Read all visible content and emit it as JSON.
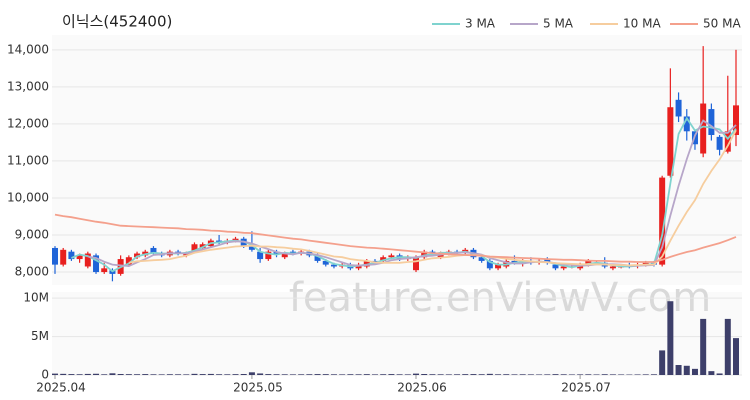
{
  "chart_data": {
    "type": "candlestick",
    "title": "이닉스(452400)",
    "watermark": "feature.enViewV.com",
    "categories": [
      "2025.04",
      null,
      null,
      null,
      null,
      null,
      null,
      null,
      null,
      null,
      null,
      null,
      null,
      null,
      null,
      null,
      null,
      null,
      null,
      null,
      null,
      null,
      null,
      null,
      "2025.05",
      null,
      null,
      null,
      null,
      null,
      null,
      null,
      null,
      null,
      null,
      null,
      null,
      null,
      null,
      null,
      null,
      null,
      null,
      null,
      "2025.06",
      null,
      null,
      null,
      null,
      null,
      null,
      null,
      null,
      null,
      null,
      null,
      null,
      null,
      null,
      null,
      null,
      null,
      null,
      null,
      "2025.07",
      null,
      null,
      null,
      null,
      null,
      null,
      null,
      null,
      null,
      null,
      null,
      null,
      null,
      null,
      null,
      null,
      null,
      null,
      null
    ],
    "open": [
      8650,
      8200,
      8550,
      8350,
      8150,
      8450,
      8000,
      8050,
      7950,
      8200,
      8400,
      8450,
      8650,
      8500,
      8450,
      8550,
      8450,
      8550,
      8650,
      8700,
      8850,
      8800,
      8850,
      8900,
      8700,
      8550,
      8350,
      8550,
      8400,
      8550,
      8500,
      8550,
      8450,
      8300,
      8200,
      8150,
      8200,
      8100,
      8150,
      8300,
      8300,
      8400,
      8450,
      8350,
      8050,
      8400,
      8550,
      8400,
      8500,
      8550,
      8550,
      8600,
      8400,
      8300,
      8100,
      8150,
      8300,
      8250,
      8300,
      8250,
      8350,
      8200,
      8100,
      8150,
      8100,
      8200,
      8250,
      8250,
      8100,
      8150,
      8200,
      8150,
      8200,
      8250,
      8200,
      10600,
      12650,
      12200,
      11800,
      11200,
      12400,
      11650,
      11250,
      11700
    ],
    "high": [
      8700,
      8650,
      8600,
      8500,
      8550,
      8500,
      8250,
      8100,
      8450,
      8450,
      8550,
      8600,
      8700,
      8550,
      8600,
      8600,
      8550,
      8800,
      8800,
      8900,
      9000,
      8900,
      8950,
      8950,
      9100,
      8650,
      8600,
      8600,
      8550,
      8600,
      8600,
      8600,
      8500,
      8350,
      8250,
      8250,
      8250,
      8250,
      8350,
      8350,
      8450,
      8500,
      8500,
      8450,
      8450,
      8600,
      8600,
      8550,
      8600,
      8600,
      8650,
      8650,
      8450,
      8350,
      8250,
      8350,
      8450,
      8350,
      8400,
      8350,
      8400,
      8250,
      8200,
      8200,
      8250,
      8350,
      8300,
      8400,
      8200,
      8200,
      8250,
      8250,
      8300,
      8300,
      10600,
      13500,
      12850,
      12400,
      11850,
      14100,
      12550,
      11700,
      13300,
      14000
    ],
    "low": [
      7950,
      8150,
      8300,
      8250,
      8100,
      7950,
      7950,
      7750,
      7900,
      8150,
      8350,
      8400,
      8450,
      8400,
      8400,
      8450,
      8400,
      8500,
      8600,
      8650,
      8750,
      8750,
      8800,
      8650,
      8550,
      8250,
      8300,
      8400,
      8350,
      8450,
      8450,
      8400,
      8250,
      8150,
      8100,
      8100,
      8050,
      8050,
      8100,
      8200,
      8250,
      8350,
      8300,
      8300,
      8000,
      8350,
      8450,
      8350,
      8450,
      8450,
      8450,
      8350,
      8250,
      8050,
      8050,
      8100,
      8200,
      8150,
      8200,
      8200,
      8200,
      8050,
      8050,
      8100,
      8050,
      8150,
      8200,
      8100,
      8050,
      8100,
      8100,
      8100,
      8150,
      8150,
      8150,
      10550,
      12050,
      11550,
      11300,
      11100,
      11550,
      11150,
      11200,
      11400
    ],
    "close": [
      8200,
      8600,
      8350,
      8450,
      8500,
      8000,
      8100,
      7950,
      8350,
      8400,
      8500,
      8550,
      8500,
      8450,
      8550,
      8500,
      8500,
      8750,
      8750,
      8850,
      8800,
      8850,
      8900,
      8700,
      8600,
      8350,
      8550,
      8500,
      8500,
      8500,
      8550,
      8450,
      8300,
      8200,
      8150,
      8200,
      8100,
      8200,
      8300,
      8250,
      8400,
      8450,
      8350,
      8400,
      8400,
      8550,
      8500,
      8500,
      8550,
      8500,
      8600,
      8400,
      8300,
      8100,
      8200,
      8300,
      8250,
      8300,
      8250,
      8300,
      8250,
      8100,
      8150,
      8150,
      8200,
      8300,
      8250,
      8150,
      8150,
      8150,
      8150,
      8200,
      8250,
      8200,
      10550,
      12450,
      12200,
      11800,
      11450,
      12550,
      11700,
      11300,
      11800,
      12500
    ],
    "volume": [
      180000,
      150000,
      120000,
      100000,
      140000,
      160000,
      90000,
      220000,
      130000,
      110000,
      100000,
      120000,
      90000,
      80000,
      100000,
      90000,
      80000,
      150000,
      120000,
      140000,
      100000,
      90000,
      110000,
      130000,
      350000,
      200000,
      120000,
      100000,
      90000,
      80000,
      90000,
      100000,
      120000,
      110000,
      90000,
      80000,
      100000,
      90000,
      110000,
      80000,
      100000,
      120000,
      90000,
      80000,
      180000,
      130000,
      100000,
      90000,
      80000,
      90000,
      110000,
      120000,
      100000,
      150000,
      90000,
      100000,
      80000,
      90000,
      80000,
      70000,
      80000,
      110000,
      90000,
      70000,
      80000,
      90000,
      70000,
      100000,
      80000,
      70000,
      60000,
      70000,
      80000,
      90000,
      3200000,
      9600000,
      1300000,
      1200000,
      800000,
      7300000,
      500000,
      200000,
      7300000,
      4800000
    ],
    "series": [
      {
        "name": "3 MA",
        "color": "#7fd3cf",
        "values": [
          null,
          null,
          8380,
          8470,
          8430,
          8320,
          8200,
          8020,
          8130,
          8230,
          8420,
          8480,
          8520,
          8500,
          8500,
          8500,
          8520,
          8580,
          8670,
          8780,
          8800,
          8830,
          8850,
          8820,
          8730,
          8550,
          8500,
          8470,
          8520,
          8500,
          8520,
          8500,
          8430,
          8320,
          8220,
          8180,
          8150,
          8170,
          8200,
          8250,
          8320,
          8370,
          8400,
          8400,
          8380,
          8450,
          8480,
          8520,
          8520,
          8520,
          8550,
          8500,
          8430,
          8270,
          8200,
          8200,
          8250,
          8280,
          8270,
          8280,
          8270,
          8220,
          8170,
          8130,
          8170,
          8220,
          8250,
          8230,
          8180,
          8150,
          8150,
          8170,
          8200,
          8220,
          9000,
          10400,
          11730,
          12150,
          11820,
          11930,
          11900,
          11850,
          11600,
          11870
        ]
      },
      {
        "name": "5 MA",
        "color": "#b7a6c9",
        "values": [
          null,
          null,
          null,
          null,
          8420,
          8380,
          8280,
          8200,
          8180,
          8160,
          8260,
          8350,
          8460,
          8480,
          8510,
          8510,
          8500,
          8550,
          8610,
          8670,
          8730,
          8800,
          8830,
          8820,
          8770,
          8690,
          8620,
          8540,
          8500,
          8480,
          8520,
          8500,
          8460,
          8400,
          8330,
          8260,
          8190,
          8170,
          8190,
          8210,
          8250,
          8320,
          8350,
          8370,
          8400,
          8430,
          8440,
          8470,
          8500,
          8520,
          8530,
          8510,
          8470,
          8380,
          8320,
          8260,
          8230,
          8230,
          8260,
          8280,
          8270,
          8240,
          8210,
          8190,
          8170,
          8180,
          8210,
          8210,
          8210,
          8200,
          8170,
          8170,
          8180,
          8190,
          8670,
          9530,
          10330,
          11050,
          11690,
          12090,
          11940,
          11760,
          11760,
          11970
        ]
      },
      {
        "name": "10 MA",
        "color": "#f6cd9e",
        "values": [
          null,
          null,
          null,
          null,
          null,
          null,
          null,
          null,
          null,
          8250,
          8290,
          8300,
          8320,
          8330,
          8350,
          8400,
          8440,
          8520,
          8560,
          8600,
          8630,
          8660,
          8690,
          8700,
          8710,
          8690,
          8690,
          8670,
          8660,
          8630,
          8610,
          8570,
          8520,
          8470,
          8420,
          8400,
          8350,
          8320,
          8300,
          8260,
          8250,
          8250,
          8250,
          8270,
          8290,
          8330,
          8370,
          8390,
          8410,
          8440,
          8460,
          8460,
          8450,
          8410,
          8390,
          8360,
          8330,
          8310,
          8290,
          8270,
          8260,
          8240,
          8230,
          8220,
          8210,
          8210,
          8210,
          8200,
          8190,
          8190,
          8180,
          8190,
          8200,
          8200,
          8420,
          8850,
          9250,
          9620,
          9940,
          10380,
          10730,
          11040,
          11410,
          11830
        ]
      },
      {
        "name": "50 MA",
        "color": "#f4a08c",
        "values": [
          9550,
          9510,
          9480,
          9440,
          9400,
          9360,
          9330,
          9290,
          9250,
          9240,
          9230,
          9220,
          9210,
          9200,
          9190,
          9180,
          9160,
          9150,
          9140,
          9120,
          9110,
          9090,
          9080,
          9060,
          9050,
          9020,
          8990,
          8960,
          8930,
          8900,
          8880,
          8850,
          8820,
          8790,
          8760,
          8730,
          8700,
          8680,
          8660,
          8650,
          8630,
          8610,
          8590,
          8570,
          8550,
          8530,
          8510,
          8500,
          8480,
          8470,
          8460,
          8450,
          8440,
          8420,
          8410,
          8400,
          8390,
          8380,
          8370,
          8360,
          8350,
          8340,
          8330,
          8330,
          8320,
          8310,
          8300,
          8300,
          8290,
          8280,
          8280,
          8270,
          8270,
          8270,
          8330,
          8410,
          8480,
          8540,
          8590,
          8660,
          8720,
          8780,
          8860,
          8950
        ]
      }
    ],
    "ylim": [
      7650,
      14400
    ],
    "yticks": [
      {
        "value": 8000,
        "label": "8,000"
      },
      {
        "value": 9000,
        "label": "9,000"
      },
      {
        "value": 10000,
        "label": "10,000"
      },
      {
        "value": 11000,
        "label": "11,000"
      },
      {
        "value": 12000,
        "label": "12,000"
      },
      {
        "value": 13000,
        "label": "13,000"
      },
      {
        "value": 14000,
        "label": "14,000"
      }
    ],
    "volume_ylim": [
      0,
      10800000
    ],
    "volume_yticks": [
      0,
      {
        "value": 5000000,
        "label": "5M"
      },
      {
        "value": 10000000,
        "label": "10M"
      }
    ],
    "up_color": "#e8201f",
    "down_color": "#1f64d8",
    "volume_color": "#3d3f6a",
    "grid": true
  }
}
